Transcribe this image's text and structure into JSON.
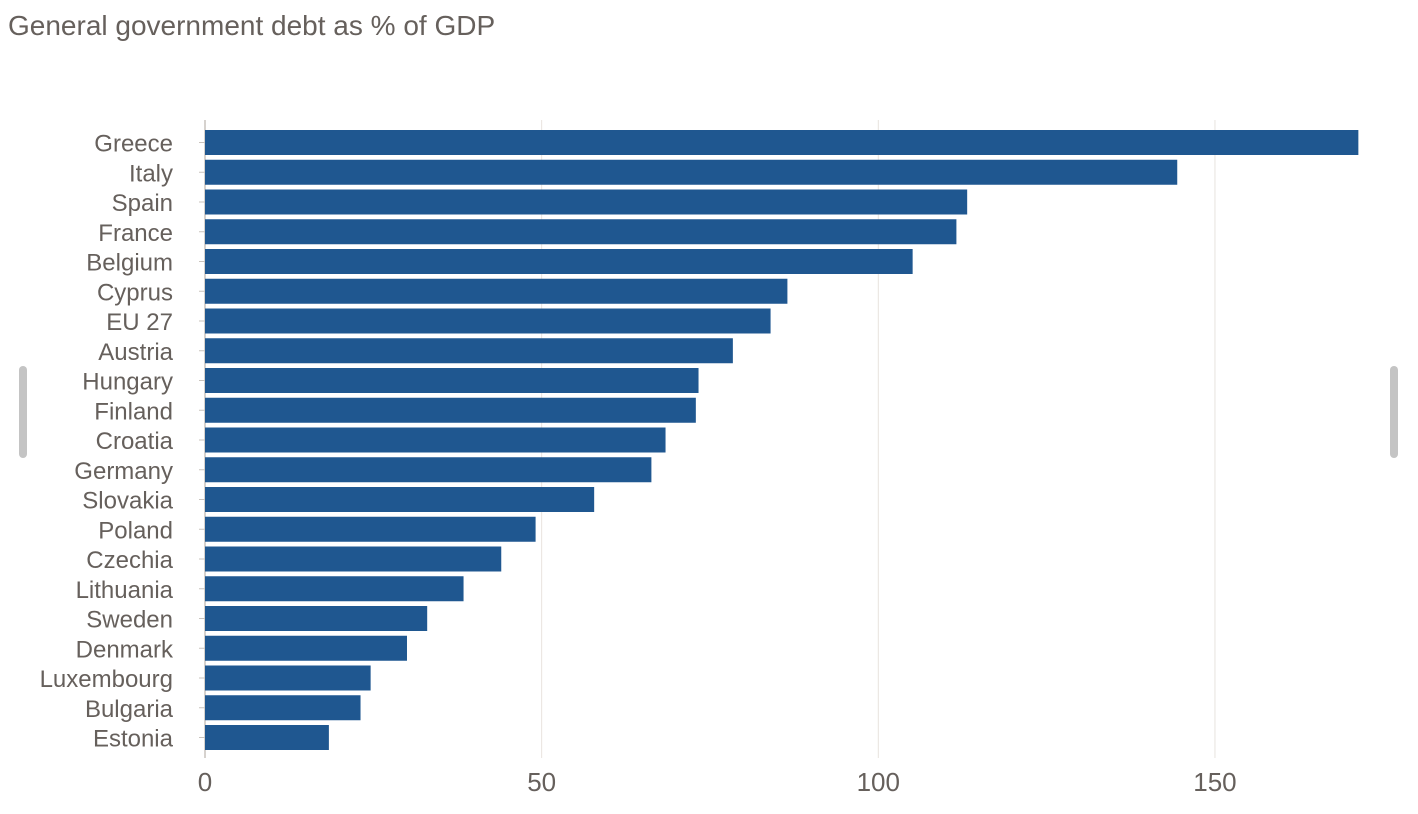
{
  "chart_data": {
    "type": "bar",
    "orientation": "horizontal",
    "title": "General government debt as % of GDP",
    "categories": [
      "Greece",
      "Italy",
      "Spain",
      "France",
      "Belgium",
      "Cyprus",
      "EU 27",
      "Austria",
      "Hungary",
      "Finland",
      "Croatia",
      "Germany",
      "Slovakia",
      "Poland",
      "Czechia",
      "Lithuania",
      "Sweden",
      "Denmark",
      "Luxembourg",
      "Bulgaria",
      "Estonia"
    ],
    "values": [
      171.3,
      144.4,
      113.2,
      111.6,
      105.1,
      86.5,
      84.0,
      78.4,
      73.3,
      72.9,
      68.4,
      66.3,
      57.8,
      49.1,
      44.0,
      38.4,
      33.0,
      30.0,
      24.6,
      23.1,
      18.4
    ],
    "xlabel": "",
    "ylabel": "",
    "xlim": [
      0,
      175
    ],
    "xticks": [
      0,
      50,
      100,
      150
    ],
    "xtick_labels": [
      "0",
      "50",
      "100",
      "150"
    ],
    "grid": "vertical",
    "legend": "none",
    "bar_color": "#1f5790",
    "grid_color": "#e8e3de",
    "text_color": "#66605c"
  },
  "scrollbar": {
    "color": "#c4c4c4"
  }
}
